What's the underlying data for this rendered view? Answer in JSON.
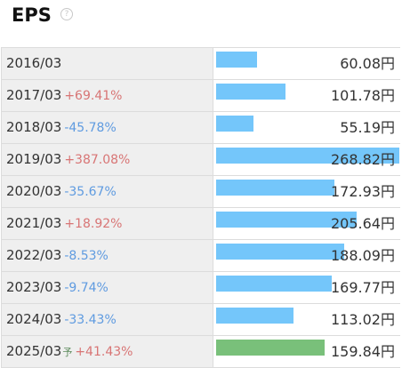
{
  "header": {
    "title": "EPS",
    "help_icon": "question-circle-icon"
  },
  "colors": {
    "actual_bar": "#74c6fa",
    "forecast_bar": "#79c07a",
    "increase": "#d87575",
    "decrease": "#5f9be0"
  },
  "rows": [
    {
      "period": "2016/03",
      "forecast_mark": "",
      "change": "",
      "direction": "",
      "value": "60.08円",
      "amount": 60.08,
      "forecast": false
    },
    {
      "period": "2017/03",
      "forecast_mark": "",
      "change": "+69.41%",
      "direction": "up",
      "value": "101.78円",
      "amount": 101.78,
      "forecast": false
    },
    {
      "period": "2018/03",
      "forecast_mark": "",
      "change": "-45.78%",
      "direction": "down",
      "value": "55.19円",
      "amount": 55.19,
      "forecast": false
    },
    {
      "period": "2019/03",
      "forecast_mark": "",
      "change": "+387.08%",
      "direction": "up",
      "value": "268.82円",
      "amount": 268.82,
      "forecast": false
    },
    {
      "period": "2020/03",
      "forecast_mark": "",
      "change": "-35.67%",
      "direction": "down",
      "value": "172.93円",
      "amount": 172.93,
      "forecast": false
    },
    {
      "period": "2021/03",
      "forecast_mark": "",
      "change": "+18.92%",
      "direction": "up",
      "value": "205.64円",
      "amount": 205.64,
      "forecast": false
    },
    {
      "period": "2022/03",
      "forecast_mark": "",
      "change": "-8.53%",
      "direction": "down",
      "value": "188.09円",
      "amount": 188.09,
      "forecast": false
    },
    {
      "period": "2023/03",
      "forecast_mark": "",
      "change": "-9.74%",
      "direction": "down",
      "value": "169.77円",
      "amount": 169.77,
      "forecast": false
    },
    {
      "period": "2024/03",
      "forecast_mark": "",
      "change": "-33.43%",
      "direction": "down",
      "value": "113.02円",
      "amount": 113.02,
      "forecast": false
    },
    {
      "period": "2025/03",
      "forecast_mark": "予",
      "change": "+41.43%",
      "direction": "up",
      "value": "159.84円",
      "amount": 159.84,
      "forecast": true
    }
  ]
}
